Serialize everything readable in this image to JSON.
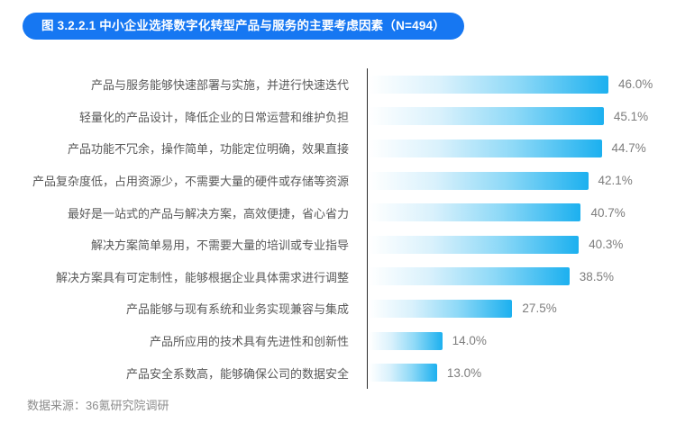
{
  "title": "图 3.2.2.1 中小企业选择数字化转型产品与服务的主要考虑因素（N=494）",
  "source": "数据来源：36氪研究院调研",
  "colors": {
    "title_bg": "#1677F2",
    "title_text": "#FFFFFF",
    "bar_end": "#1CB0EF",
    "axis_line": "#2B2B2B",
    "label_text": "#595959",
    "value_text": "#7D7D7D",
    "source_text": "#8C8C8C"
  },
  "chart_data": {
    "type": "bar",
    "orientation": "horizontal",
    "title": "图 3.2.2.1 中小企业选择数字化转型产品与服务的主要考虑因素（N=494）",
    "sample_size": 494,
    "categories": [
      "产品与服务能够快速部署与实施，并进行快速迭代",
      "轻量化的产品设计，降低企业的日常运营和维护负担",
      "产品功能不冗余，操作简单，功能定位明确，效果直接",
      "产品复杂度低，占用资源少，不需要大量的硬件或存储等资源",
      "最好是一站式的产品与解决方案，高效便捷，省心省力",
      "解决方案简单易用，不需要大量的培训或专业指导",
      "解决方案具有可定制性，能够根据企业具体需求进行调整",
      "产品能够与现有系统和业务实现兼容与集成",
      "产品所应用的技术具有先进性和创新性",
      "产品安全系数高，能够确保公司的数据安全"
    ],
    "values": [
      46.0,
      45.1,
      44.7,
      42.1,
      40.7,
      40.3,
      38.5,
      27.5,
      14.0,
      13.0
    ],
    "value_labels": [
      "46.0%",
      "45.1%",
      "44.7%",
      "42.1%",
      "40.7%",
      "40.3%",
      "38.5%",
      "27.5%",
      "14.0%",
      "13.0%"
    ],
    "xlabel": "",
    "ylabel": "",
    "xlim": [
      0,
      46
    ],
    "grid": false,
    "legend": false,
    "value_label_position": "right_of_bar",
    "bar_style": "left-to-right gradient, white to cyan-blue"
  }
}
